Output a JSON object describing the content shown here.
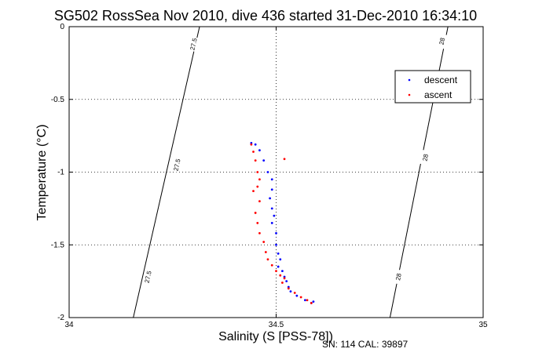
{
  "chart_data": {
    "type": "scatter",
    "title": "SG502 RossSea Nov 2010, dive 436 started 31-Dec-2010 16:34:10",
    "xlabel": "Salinity (S [PSS-78])",
    "ylabel": "Temperature (°C)",
    "xlim": [
      34,
      35
    ],
    "ylim": [
      -2,
      0
    ],
    "x_ticks": [
      34,
      34.5,
      35
    ],
    "x_tick_labels": [
      "34",
      "34.5",
      "35"
    ],
    "y_ticks": [
      0,
      -0.5,
      -1,
      -1.5,
      -2
    ],
    "y_tick_labels": [
      "0",
      "-0.5",
      "-1",
      "-1.5",
      "-2"
    ],
    "grid": true,
    "legend_position": "top-right",
    "isopycnals": [
      {
        "label": "27.5",
        "points": [
          [
            34.315,
            0
          ],
          [
            34.155,
            -2
          ]
        ],
        "label_positions": [
          [
            34.3,
            -0.12
          ],
          [
            34.26,
            -0.95
          ],
          [
            34.19,
            -1.72
          ]
        ]
      },
      {
        "label": "28",
        "points": [
          [
            34.915,
            0
          ],
          [
            34.775,
            -2
          ]
        ],
        "label_positions": [
          [
            34.9,
            -0.1
          ],
          [
            34.86,
            -0.9
          ],
          [
            34.795,
            -1.72
          ]
        ]
      }
    ],
    "series": [
      {
        "name": "descent",
        "color": "#0000ff",
        "points": [
          [
            34.44,
            -0.8
          ],
          [
            34.45,
            -0.81
          ],
          [
            34.46,
            -0.85
          ],
          [
            34.47,
            -0.92
          ],
          [
            34.48,
            -1.0
          ],
          [
            34.49,
            -1.05
          ],
          [
            34.49,
            -1.12
          ],
          [
            34.485,
            -1.18
          ],
          [
            34.49,
            -1.25
          ],
          [
            34.495,
            -1.3
          ],
          [
            34.49,
            -1.35
          ],
          [
            34.5,
            -1.42
          ],
          [
            34.5,
            -1.5
          ],
          [
            34.505,
            -1.56
          ],
          [
            34.51,
            -1.6
          ],
          [
            34.505,
            -1.65
          ],
          [
            34.515,
            -1.68
          ],
          [
            34.52,
            -1.72
          ],
          [
            34.525,
            -1.75
          ],
          [
            34.53,
            -1.79
          ],
          [
            34.535,
            -1.82
          ],
          [
            34.55,
            -1.85
          ],
          [
            34.57,
            -1.88
          ],
          [
            34.585,
            -1.9
          ],
          [
            34.59,
            -1.89
          ]
        ]
      },
      {
        "name": "ascent",
        "color": "#ff0000",
        "points": [
          [
            34.44,
            -0.81
          ],
          [
            34.445,
            -0.86
          ],
          [
            34.45,
            -0.92
          ],
          [
            34.455,
            -1.0
          ],
          [
            34.46,
            -1.05
          ],
          [
            34.455,
            -1.1
          ],
          [
            34.445,
            -1.13
          ],
          [
            34.46,
            -1.2
          ],
          [
            34.45,
            -1.28
          ],
          [
            34.455,
            -1.35
          ],
          [
            34.46,
            -1.42
          ],
          [
            34.52,
            -0.91
          ],
          [
            34.47,
            -1.48
          ],
          [
            34.475,
            -1.55
          ],
          [
            34.48,
            -1.6
          ],
          [
            34.49,
            -1.64
          ],
          [
            34.5,
            -1.68
          ],
          [
            34.51,
            -1.71
          ],
          [
            34.52,
            -1.73
          ],
          [
            34.515,
            -1.76
          ],
          [
            34.53,
            -1.8
          ],
          [
            34.545,
            -1.83
          ],
          [
            34.56,
            -1.86
          ],
          [
            34.575,
            -1.88
          ],
          [
            34.585,
            -1.9
          ]
        ]
      }
    ]
  },
  "footer": {
    "text": "SN: 114  CAL: 39897"
  }
}
